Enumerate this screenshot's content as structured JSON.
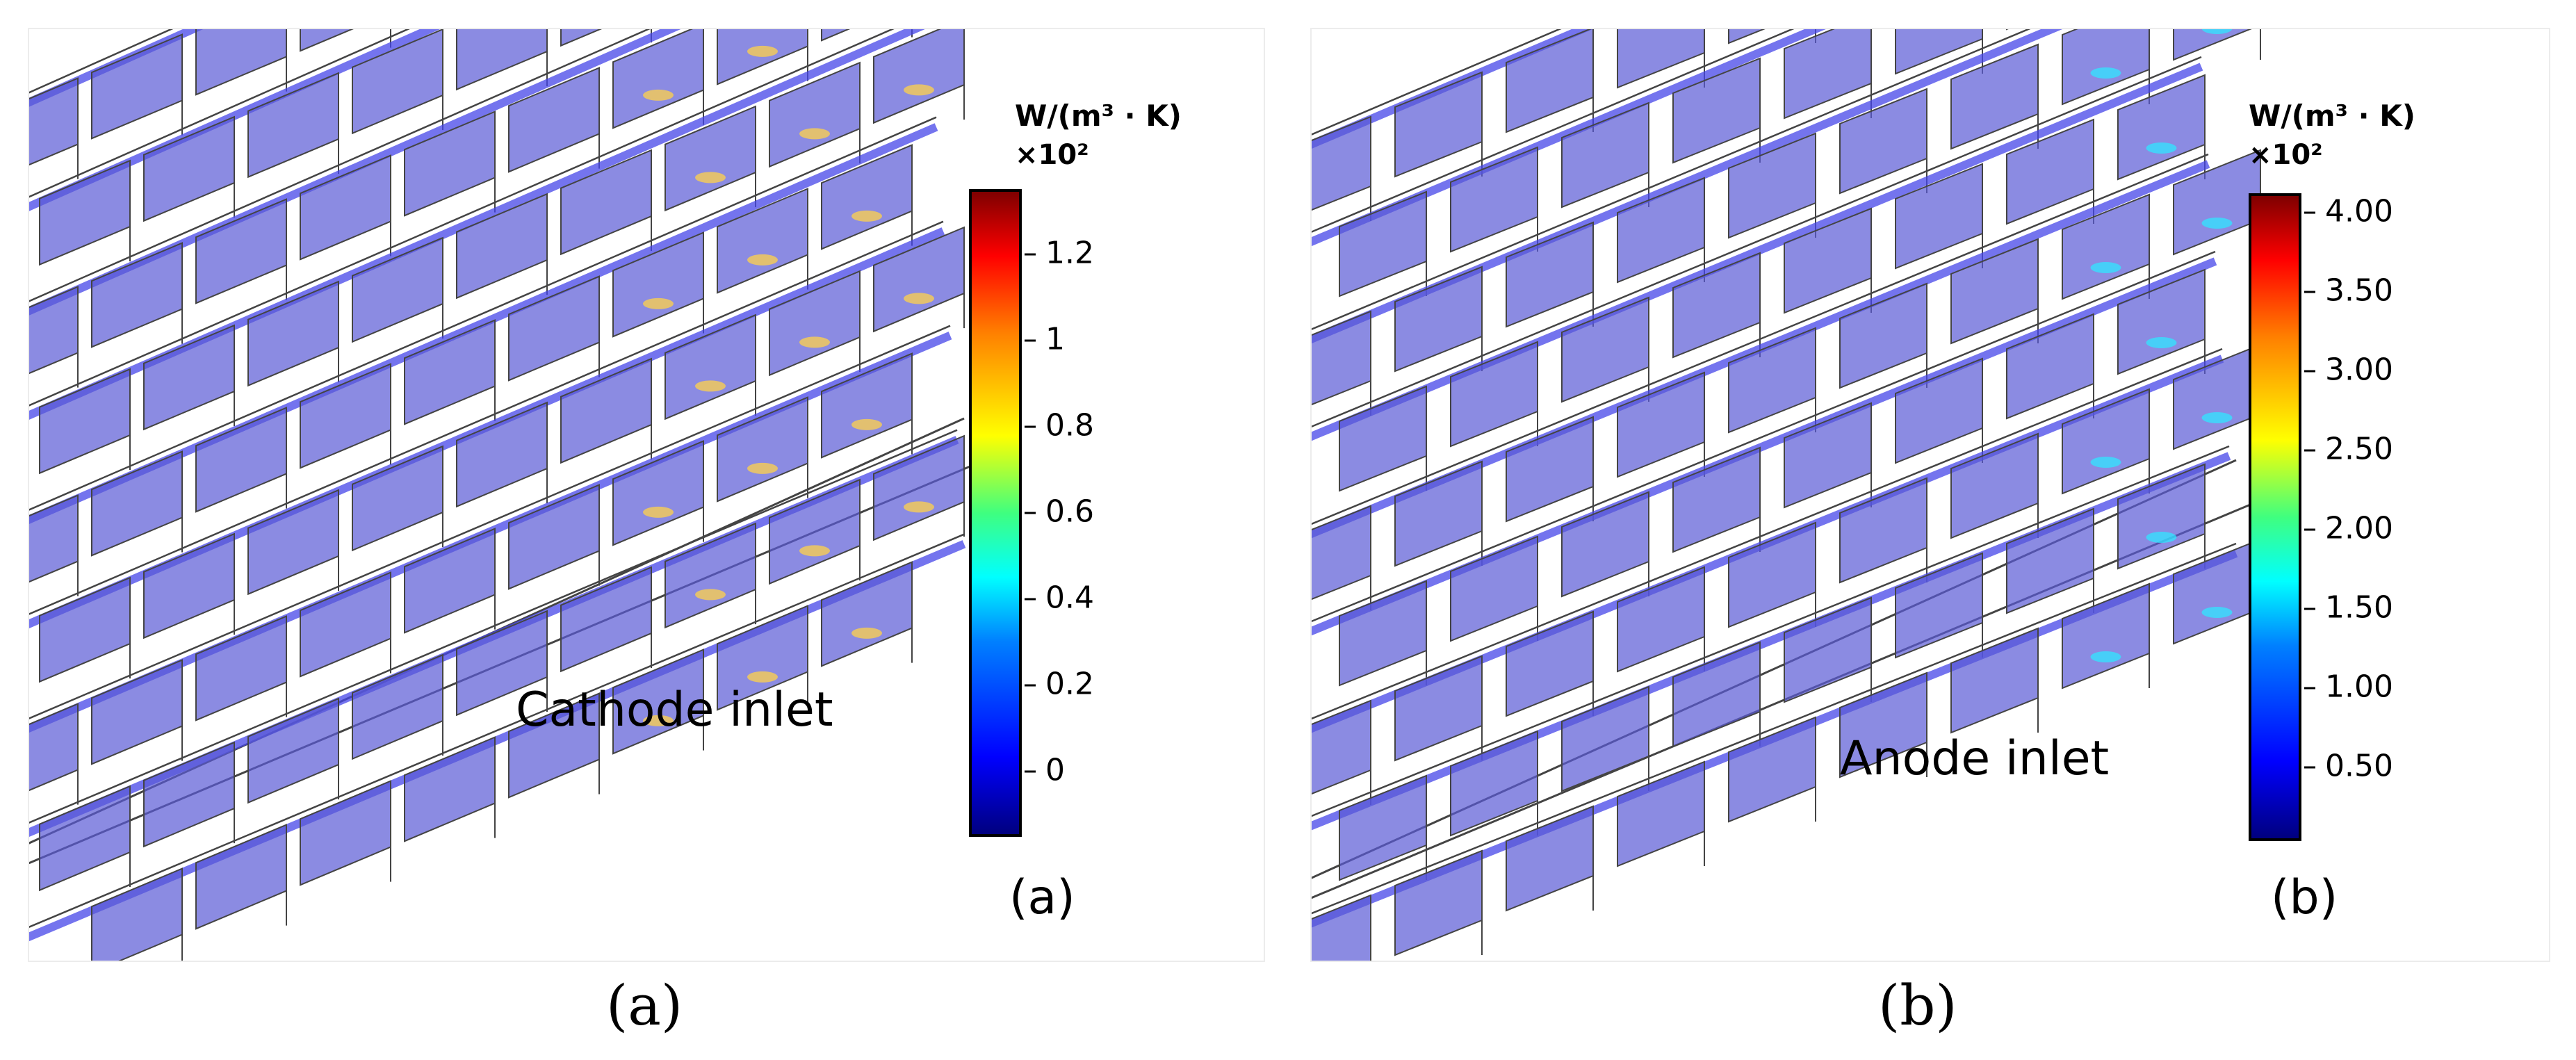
{
  "panel_a": {
    "colorbar_unit": "W/(m³ · K)",
    "colorbar_multiplier": "×10²",
    "colorbar_ticks": [
      "1.2",
      "1",
      "0.8",
      "0.6",
      "0.4",
      "0.2",
      "0"
    ],
    "inlet_label": "Cathode inlet",
    "inner_label": "(a)"
  },
  "panel_b": {
    "colorbar_unit": "W/(m³ · K)",
    "colorbar_multiplier": "×10²",
    "colorbar_ticks": [
      "4.00",
      "3.50",
      "3.00",
      "2.50",
      "2.00",
      "1.50",
      "1.00",
      "0.50"
    ],
    "inlet_label": "Anode inlet",
    "inner_label": "(b)"
  },
  "captions": {
    "a": "(a)",
    "b": "(b)"
  },
  "colors": {
    "fin_fill": "#5a5ad6",
    "channel_bar": "#4545e8",
    "mesh_line": "#444444",
    "hot_spot_a": "#ffd24a",
    "hot_spot_b": "#30e6ff"
  }
}
